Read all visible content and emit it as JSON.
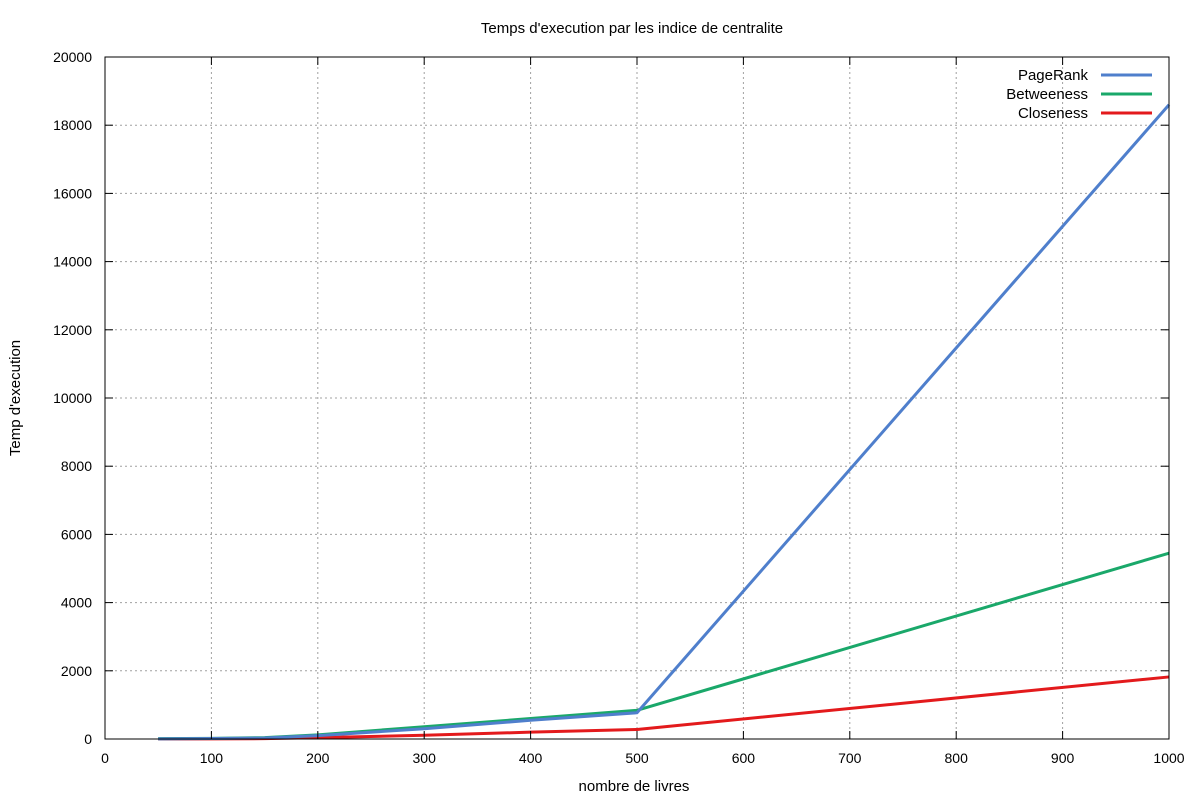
{
  "chart_data": {
    "type": "line",
    "title": "Temps d'execution par les indice de centralite",
    "xlabel": "nombre de livres",
    "ylabel": "Temp d'execution",
    "xlim": [
      0,
      1000
    ],
    "ylim": [
      0,
      20000
    ],
    "xticks": [
      0,
      100,
      200,
      300,
      400,
      500,
      600,
      700,
      800,
      900,
      1000
    ],
    "yticks": [
      0,
      2000,
      4000,
      6000,
      8000,
      10000,
      12000,
      14000,
      16000,
      18000,
      20000
    ],
    "grid": true,
    "legend_position": "top-right",
    "series": [
      {
        "name": "PageRank",
        "color": "#4f7fcc",
        "points": [
          [
            50,
            5
          ],
          [
            100,
            15
          ],
          [
            150,
            30
          ],
          [
            200,
            100
          ],
          [
            300,
            300
          ],
          [
            400,
            550
          ],
          [
            500,
            770
          ],
          [
            1000,
            18600
          ]
        ]
      },
      {
        "name": "Betweeness",
        "color": "#1aa86a",
        "points": [
          [
            50,
            10
          ],
          [
            100,
            20
          ],
          [
            150,
            40
          ],
          [
            200,
            120
          ],
          [
            300,
            360
          ],
          [
            400,
            600
          ],
          [
            500,
            840
          ],
          [
            1000,
            5450
          ]
        ]
      },
      {
        "name": "Closeness",
        "color": "#e31a1c",
        "points": [
          [
            50,
            0
          ],
          [
            100,
            5
          ],
          [
            150,
            10
          ],
          [
            200,
            40
          ],
          [
            300,
            110
          ],
          [
            400,
            200
          ],
          [
            500,
            280
          ],
          [
            1000,
            1820
          ]
        ]
      }
    ]
  }
}
